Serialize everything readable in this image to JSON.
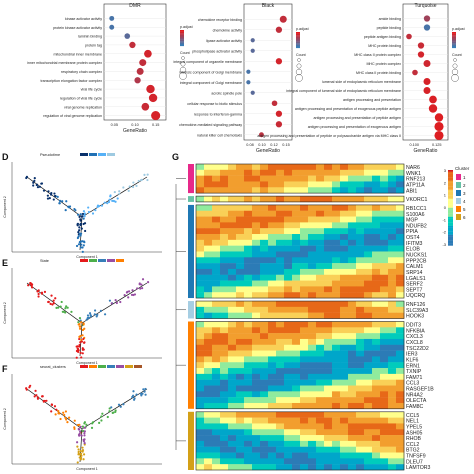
{
  "panels": {
    "top_left": {
      "title": "DMR",
      "terms": [
        "kinase activator activity",
        "protein kinase activator activity",
        "laminin binding",
        "protein tag",
        "mitochondrial inner membrane",
        "inner mitochondrial membrane protein complex",
        "respiratory chain complex",
        "transcription elongation factor complex",
        "viral life cycle",
        "regulation of viral life cycle",
        "viral genome replication",
        "regulation of viral genome replication"
      ],
      "gene_ratio": [
        0.055,
        0.055,
        0.085,
        0.095,
        0.125,
        0.115,
        0.11,
        0.105,
        0.13,
        0.135,
        0.12,
        0.14
      ],
      "p_adjust": [
        0.045,
        0.045,
        0.04,
        0.01,
        0.005,
        0.01,
        0.012,
        0.015,
        0.005,
        0.005,
        0.008,
        0.004
      ],
      "count": [
        3,
        3,
        4,
        5,
        7,
        6,
        6,
        5,
        8,
        8,
        7,
        9
      ],
      "xlabel": "GeneRatio",
      "xticks": [
        "0.05",
        "0.10",
        "0.15"
      ]
    },
    "top_mid": {
      "title": "Black",
      "terms": [
        "chemokine receptor binding",
        "chemokine activity",
        "lipase activator activity",
        "phospholipase activator activity",
        "integral component of organelle membrane",
        "intrinsic component of Golgi membrane",
        "integral component of Golgi membrane",
        "acrolic spindle pole",
        "cellular response to biotic stimulus",
        "response to interferon-gamma",
        "chemokine-mediated signaling pathway",
        "natural killer cell chemotaxis"
      ],
      "gene_ratio": [
        0.14,
        0.13,
        0.07,
        0.07,
        0.13,
        0.06,
        0.06,
        0.07,
        0.12,
        0.13,
        0.13,
        0.09
      ],
      "p_adjust": [
        0.01,
        0.01,
        0.04,
        0.04,
        0.005,
        0.045,
        0.045,
        0.04,
        0.01,
        0.005,
        0.008,
        0.012
      ],
      "count": [
        6,
        5,
        2,
        2,
        5,
        2,
        2,
        2,
        4,
        5,
        5,
        3
      ],
      "xlabel": "GeneRatio",
      "xticks": [
        "0.08",
        "0.10",
        "0.12",
        "0.15"
      ]
    },
    "top_right": {
      "title": "Turquoise",
      "terms": [
        "amide binding",
        "peptide binding",
        "peptide antigen binding",
        "MHC protein binding",
        "MHC class II protein complex",
        "MHC protein complex",
        "MHC class II protein binding",
        "lumenal side of endoplasmic reticulum membrane",
        "integral component of lumenal side of endoplasmic reticulum membrane",
        "antigen processing and presentation",
        "antigen processing and presentation of exogenous peptide antigen",
        "antigen processing and presentation of peptide antigen",
        "antigen processing and presentation of exogenous antigen",
        "antigen processing and presentation of peptide or polysaccharide antigen via MHC class II"
      ],
      "gene_ratio": [
        0.11,
        0.11,
        0.08,
        0.1,
        0.1,
        0.11,
        0.09,
        0.11,
        0.11,
        0.12,
        0.12,
        0.13,
        0.13,
        0.13
      ],
      "p_adjust": [
        0.02,
        0.045,
        0.01,
        0.008,
        0.005,
        0.006,
        0.01,
        0.004,
        0.004,
        0.003,
        0.003,
        0.002,
        0.002,
        0.002
      ],
      "count": [
        5,
        5,
        4,
        5,
        5,
        6,
        4,
        6,
        6,
        7,
        8,
        8,
        9,
        9
      ],
      "xlabel": "GeneRatio",
      "xticks": [
        "0.100",
        "0.125"
      ]
    }
  },
  "legend": {
    "p_adjust_title": "p.adjust",
    "count_title": "Count"
  },
  "traj": {
    "D": {
      "label": "D",
      "legend_title": "Pseudotime",
      "ylabel": "Component 2",
      "xlabel": "Component 1"
    },
    "E": {
      "label": "E",
      "legend_title": "State",
      "ylabel": "Component 2",
      "xlabel": "Component 1"
    },
    "F": {
      "label": "F",
      "legend_title": "seurat_clusters",
      "ylabel": "Component 2",
      "xlabel": "Component 1"
    }
  },
  "heatmap": {
    "label": "G",
    "legend_title": "Cluster",
    "cluster_ids": [
      "1",
      "2",
      "3",
      "4",
      "5",
      "6"
    ],
    "cluster_colors": [
      "#e7298a",
      "#66c2a5",
      "#1f78b4",
      "#a6cee3",
      "#ff7f00",
      "#d4a017"
    ],
    "scale_ticks": [
      "3",
      "2",
      "1",
      "0",
      "-1",
      "-2",
      "-3"
    ],
    "gene_groups": [
      {
        "cluster": "1",
        "genes": [
          "NAR6",
          "WNK1",
          "RNF213",
          "ATP11A",
          "ABI1"
        ]
      },
      {
        "cluster": "2",
        "genes": [
          "VKORC1"
        ]
      },
      {
        "cluster": "3",
        "genes": [
          "RB1CC1",
          "S100A6",
          "MGP",
          "NDUFB2",
          "PPIA",
          "OST4",
          "IFITM3",
          "ELOB",
          "NUCKS1",
          "PPP2CB",
          "CALM1",
          "SRP14",
          "LGALS1",
          "SERF2",
          "SEPT7",
          "UQCRQ"
        ]
      },
      {
        "cluster": "4",
        "genes": [
          "RNF126",
          "SLC39A3",
          "HOOK3"
        ]
      },
      {
        "cluster": "5",
        "genes": [
          "DDIT3",
          "NFKBIA",
          "CXCL3",
          "CXCL8",
          "TSC22D2",
          "IER3",
          "KLF6",
          "ERN1",
          "TXNIP",
          "FAM71",
          "CCL3",
          "RASGEF1B",
          "NR4A2",
          "OLECTA",
          "FAM8C"
        ]
      },
      {
        "cluster": "6",
        "genes": [
          "CCL5",
          "NEL1",
          "YPEL5",
          "ASH05",
          "RHOB",
          "CCL2",
          "BTG2",
          "TNFSF9",
          "DLEU7",
          "LAMTOR3"
        ]
      }
    ]
  },
  "colors": {
    "p_high": "#e41a1c",
    "p_low": "#377eb8",
    "traj_main": "#08306b",
    "traj_light": "#56b1f7"
  }
}
